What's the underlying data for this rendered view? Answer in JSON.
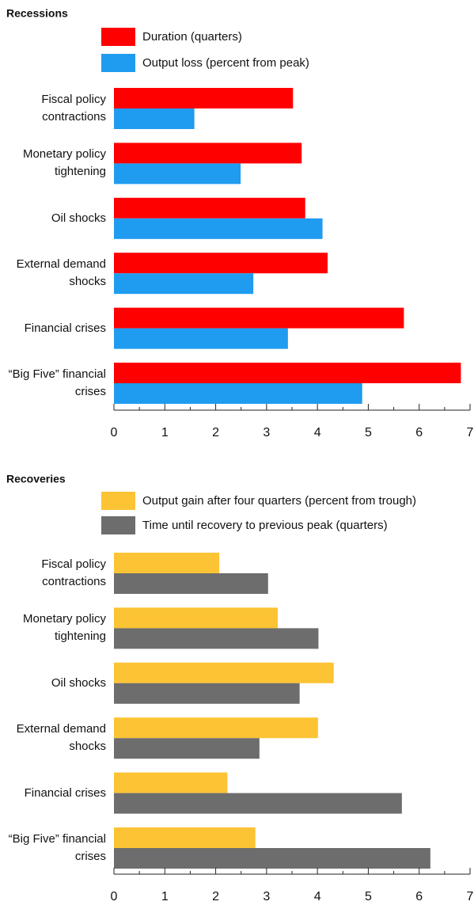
{
  "chart_data": [
    {
      "type": "bar",
      "orientation": "horizontal",
      "title": "Recessions",
      "categories": [
        "Fiscal policy contractions",
        "Monetary policy tightening",
        "Oil shocks",
        "External demand shocks",
        "Financial crises",
        "“Big Five” financial crises"
      ],
      "series": [
        {
          "name": "Duration (quarters)",
          "color": "#ff0000",
          "values": [
            3.52,
            3.69,
            3.76,
            4.2,
            5.7,
            6.82
          ]
        },
        {
          "name": "Output loss (percent from peak)",
          "color": "#1f9bf0",
          "values": [
            1.58,
            2.49,
            4.1,
            2.74,
            3.42,
            4.88
          ]
        }
      ],
      "xlim": [
        0,
        7
      ],
      "xticks": [
        0,
        1,
        2,
        3,
        4,
        5,
        6,
        7
      ],
      "minor_xticks": [
        0.5,
        1.5,
        2.5,
        3.5,
        4.5,
        5.5,
        6.5
      ]
    },
    {
      "type": "bar",
      "orientation": "horizontal",
      "title": "Recoveries",
      "categories": [
        "Fiscal policy contractions",
        "Monetary policy tightening",
        "Oil shocks",
        "External demand shocks",
        "Financial crises",
        "“Big Five” financial crises"
      ],
      "series": [
        {
          "name": "Output gain after four quarters (percent from trough)",
          "color": "#fcc334",
          "values": [
            2.07,
            3.22,
            4.32,
            4.01,
            2.23,
            2.78
          ]
        },
        {
          "name": "Time until recovery to previous peak (quarters)",
          "color": "#6d6d6d",
          "values": [
            3.03,
            4.02,
            3.65,
            2.86,
            5.66,
            6.22
          ]
        }
      ],
      "xlim": [
        0,
        7
      ],
      "xticks": [
        0,
        1,
        2,
        3,
        4,
        5,
        6,
        7
      ],
      "minor_xticks": [
        0.5,
        1.5,
        2.5,
        3.5,
        4.5,
        5.5,
        6.5
      ]
    }
  ]
}
